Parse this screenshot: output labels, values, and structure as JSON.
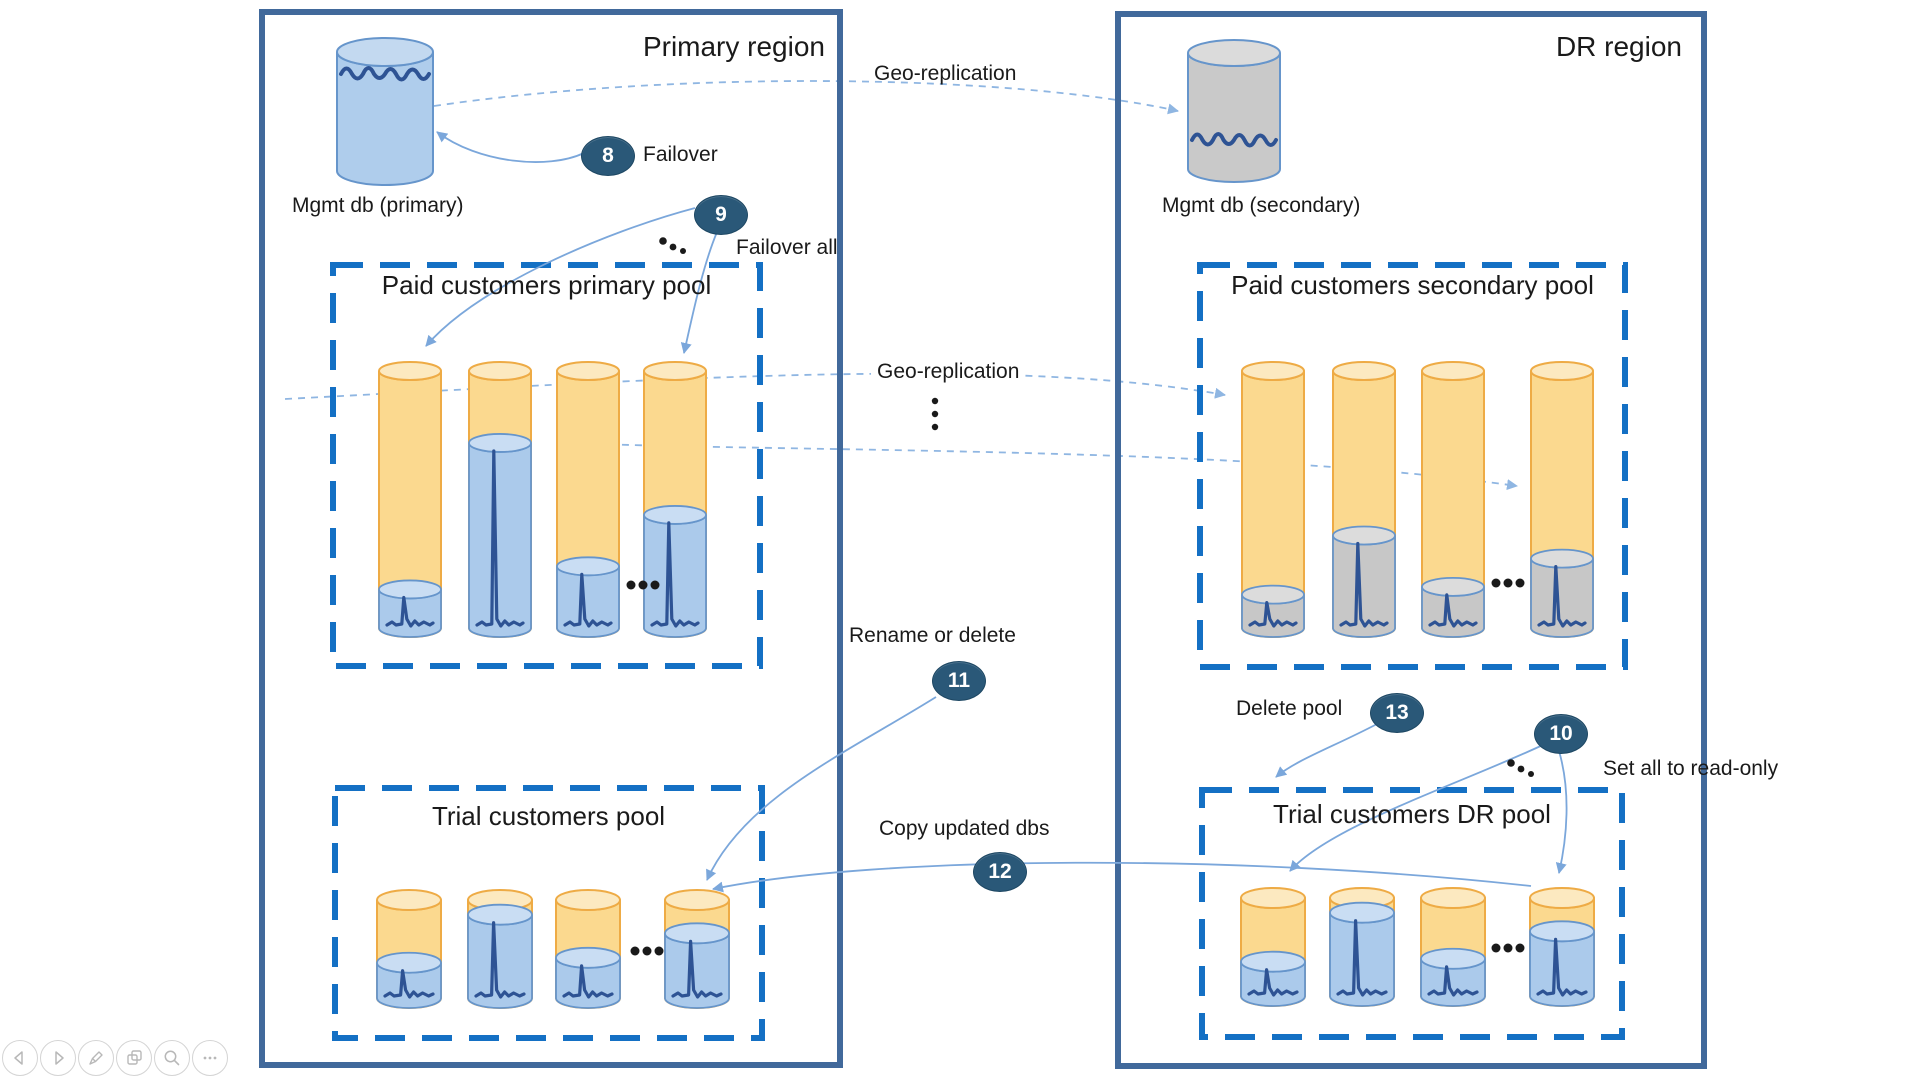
{
  "slide": {
    "primary_region": {
      "title": "Primary region",
      "mgmt_db_label": "Mgmt db (primary)",
      "paid_pool": {
        "title": "Paid customers primary pool",
        "db_fill_percent": [
          15,
          72,
          24,
          44
        ]
      },
      "trial_pool": {
        "title": "Trial customers pool",
        "db_fill_percent": [
          36,
          85,
          41,
          66
        ]
      }
    },
    "dr_region": {
      "title": "DR region",
      "mgmt_db_label": "Mgmt db (secondary)",
      "paid_pool": {
        "title": "Paid customers secondary pool",
        "db_fill_percent": [
          13,
          36,
          16,
          27
        ]
      },
      "trial_pool": {
        "title": "Trial customers DR pool",
        "db_fill_percent": [
          35,
          85,
          38,
          66
        ]
      }
    },
    "annotations": {
      "geo_top": "Geo-replication",
      "geo_mid": "Geo-replication",
      "steps": {
        "s8": {
          "num": "8",
          "label": "Failover"
        },
        "s9": {
          "num": "9",
          "label": "Failover all"
        },
        "s10": {
          "num": "10",
          "label": "Set all to read-only"
        },
        "s11": {
          "num": "11",
          "label": "Rename or delete"
        },
        "s12": {
          "num": "12",
          "label": "Copy updated dbs"
        },
        "s13": {
          "num": "13",
          "label": "Delete pool"
        }
      }
    }
  },
  "colors": {
    "region_border": "#41699B",
    "pool_border": "#1470C4",
    "badge_fill": "#2A5878",
    "arrow": "#7BA7DB",
    "arrow_dashed": "#8FB6E2",
    "orange_body": "#FBD98F",
    "orange_top": "#FCE9C0",
    "orange_stroke": "#EEAB45",
    "blue_body": "#ABCAEB",
    "blue_top": "#C9DDF3",
    "blue_stroke": "#6695CB",
    "gray_body": "#C7C7C7",
    "gray_top": "#DCDCDC",
    "mgmt_blue_body": "#AFCDEC",
    "mgmt_blue_top": "#C3D9F0",
    "mgmt_gray_body": "#C9C9C9",
    "mgmt_gray_top": "#DBDBDB",
    "signal": "#2E5394",
    "dots": "#1a1a1a"
  },
  "toolbar": {
    "buttons": [
      "previous-slide",
      "next-slide",
      "pen-tools",
      "see-all-slides",
      "zoom-to-slide",
      "more-options"
    ]
  }
}
